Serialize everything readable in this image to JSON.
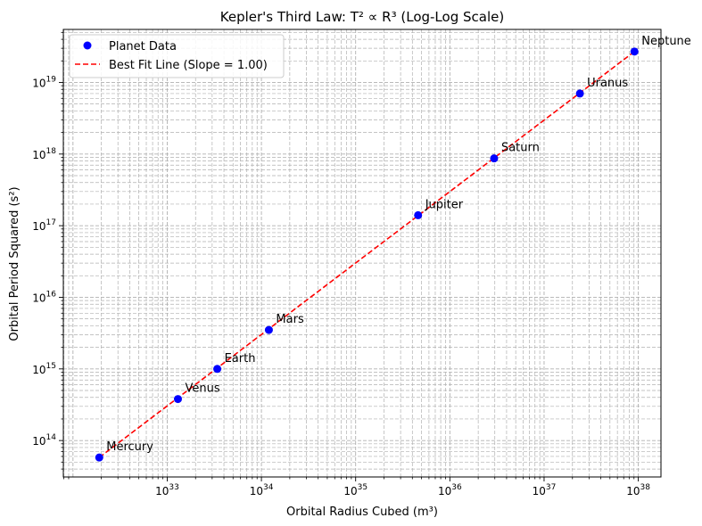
{
  "chart_data": {
    "type": "scatter",
    "title": "Kepler's Third Law: T² ∝ R³ (Log-Log Scale)",
    "xlabel": "Orbital Radius Cubed (m³)",
    "ylabel": "Orbital Period Squared (s²)",
    "xscale": "log",
    "yscale": "log",
    "xlim": [
      7.9e+31,
      1.74e+38
    ],
    "ylim": [
      31000000000000.0,
      5.5e+19
    ],
    "grid": true,
    "legend_position": "upper-left",
    "xticks": [
      {
        "base": "10",
        "exp": "33",
        "value": 1e+33
      },
      {
        "base": "10",
        "exp": "34",
        "value": 1e+34
      },
      {
        "base": "10",
        "exp": "35",
        "value": 1e+35
      },
      {
        "base": "10",
        "exp": "36",
        "value": 1e+36
      },
      {
        "base": "10",
        "exp": "37",
        "value": 1e+37
      },
      {
        "base": "10",
        "exp": "38",
        "value": 1e+38
      }
    ],
    "yticks": [
      {
        "base": "10",
        "exp": "14",
        "value": 100000000000000.0
      },
      {
        "base": "10",
        "exp": "15",
        "value": 1000000000000000.0
      },
      {
        "base": "10",
        "exp": "16",
        "value": 1e+16
      },
      {
        "base": "10",
        "exp": "17",
        "value": 1e+17
      },
      {
        "base": "10",
        "exp": "18",
        "value": 1e+18
      },
      {
        "base": "10",
        "exp": "19",
        "value": 1e+19
      }
    ],
    "series": [
      {
        "name": "Planet Data",
        "kind": "markers",
        "color": "#0000ff",
        "points": [
          {
            "label": "Mercury",
            "x": 1.9e+32,
            "y": 58000000000000.0
          },
          {
            "label": "Venus",
            "x": 1.3e+33,
            "y": 380000000000000.0
          },
          {
            "label": "Earth",
            "x": 3.4e+33,
            "y": 1000000000000000.0
          },
          {
            "label": "Mars",
            "x": 1.2e+34,
            "y": 3500000000000000.0
          },
          {
            "label": "Jupiter",
            "x": 4.6e+35,
            "y": 1.4e+17
          },
          {
            "label": "Saturn",
            "x": 2.95e+36,
            "y": 8.7e+17
          },
          {
            "label": "Uranus",
            "x": 2.4e+37,
            "y": 7e+18
          },
          {
            "label": "Neptune",
            "x": 9.1e+37,
            "y": 2.7e+19
          }
        ]
      },
      {
        "name": "Best Fit Line (Slope = 1.00)",
        "kind": "dashed-line",
        "color": "#ff0000",
        "x": [
          1.9e+32,
          9.1e+37
        ],
        "y": [
          58000000000000.0,
          2.7e+19
        ]
      }
    ]
  }
}
